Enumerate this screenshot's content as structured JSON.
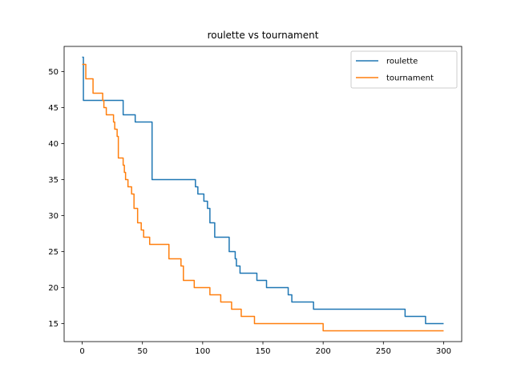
{
  "chart_data": {
    "type": "line",
    "title": "roulette vs tournament",
    "xlabel": "",
    "ylabel": "",
    "xlim": [
      -15,
      315
    ],
    "ylim": [
      12.5,
      53.5
    ],
    "xticks": [
      0,
      50,
      100,
      150,
      200,
      250,
      300
    ],
    "yticks": [
      15,
      20,
      25,
      30,
      35,
      40,
      45,
      50
    ],
    "grid": false,
    "legend_position": "top-right",
    "series": [
      {
        "name": "roulette",
        "color": "#1f77b4",
        "steps": [
          [
            0,
            52
          ],
          [
            1,
            46
          ],
          [
            34,
            44
          ],
          [
            44,
            43
          ],
          [
            58,
            35
          ],
          [
            94,
            34
          ],
          [
            96,
            33
          ],
          [
            101,
            32
          ],
          [
            104,
            31
          ],
          [
            106,
            29
          ],
          [
            110,
            27
          ],
          [
            122,
            25
          ],
          [
            127,
            24
          ],
          [
            128,
            23
          ],
          [
            131,
            22
          ],
          [
            145,
            21
          ],
          [
            153,
            20
          ],
          [
            171,
            19
          ],
          [
            174,
            18
          ],
          [
            192,
            17
          ],
          [
            268,
            16
          ],
          [
            285,
            15
          ],
          [
            300,
            15
          ]
        ]
      },
      {
        "name": "tournament",
        "color": "#ff7f0e",
        "steps": [
          [
            0,
            51
          ],
          [
            3,
            49
          ],
          [
            9,
            47
          ],
          [
            17,
            46
          ],
          [
            18,
            45
          ],
          [
            20,
            44
          ],
          [
            26,
            43
          ],
          [
            27,
            42
          ],
          [
            29,
            41
          ],
          [
            30,
            38
          ],
          [
            34,
            37
          ],
          [
            35,
            36
          ],
          [
            36,
            35
          ],
          [
            38,
            34
          ],
          [
            41,
            33
          ],
          [
            43,
            31
          ],
          [
            46,
            29
          ],
          [
            49,
            28
          ],
          [
            51,
            27
          ],
          [
            56,
            26
          ],
          [
            72,
            24
          ],
          [
            82,
            23
          ],
          [
            84,
            21
          ],
          [
            93,
            20
          ],
          [
            106,
            19
          ],
          [
            115,
            18
          ],
          [
            124,
            17
          ],
          [
            132,
            16
          ],
          [
            143,
            15
          ],
          [
            200,
            14
          ],
          [
            300,
            14
          ]
        ]
      }
    ]
  }
}
